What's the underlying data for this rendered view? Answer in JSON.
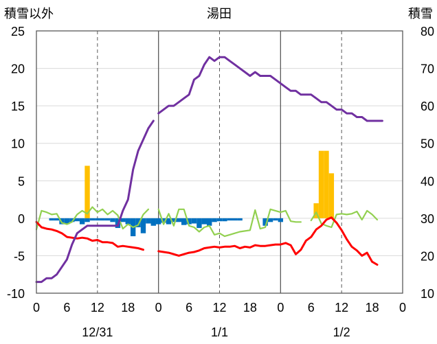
{
  "chart_data": {
    "type": "line",
    "title": "湯田",
    "ylabel_left": "積雪以外",
    "ylabel_right": "積雪",
    "ylim_left": [
      -10,
      25
    ],
    "ylim_right": [
      10,
      80
    ],
    "yticks_left": [
      "-10",
      "-5",
      "0",
      "5",
      "10",
      "15",
      "20",
      "25"
    ],
    "yticks_right": [
      "10",
      "20",
      "30",
      "40",
      "50",
      "60",
      "70",
      "80"
    ],
    "x_hours": [
      0,
      72
    ],
    "xticks": [
      "0",
      "6",
      "12",
      "18",
      "0",
      "6",
      "12",
      "18",
      "0",
      "6",
      "12",
      "18",
      "0"
    ],
    "date_labels": [
      {
        "text": "12/31",
        "hour": 12
      },
      {
        "text": "1/1",
        "hour": 36
      },
      {
        "text": "1/2",
        "hour": 60
      }
    ],
    "colors": {
      "snow_depth": "#7030a0",
      "temperature": "#ff0000",
      "sunshine": "#92d050",
      "precipitation": "#ffc000",
      "snow_change": "#0070c0"
    },
    "series": [
      {
        "key": "snow_depth",
        "axis": "right",
        "kind": "line",
        "segments": [
          [
            [
              0,
              13
            ],
            [
              1,
              13
            ],
            [
              2,
              14
            ],
            [
              3,
              14
            ],
            [
              4,
              15
            ],
            [
              5,
              17
            ],
            [
              6,
              19
            ],
            [
              7,
              23
            ],
            [
              8,
              26
            ],
            [
              9,
              27
            ],
            [
              10,
              28
            ],
            [
              11,
              28
            ],
            [
              12,
              28
            ],
            [
              13,
              28
            ],
            [
              14,
              28
            ],
            [
              15,
              28
            ],
            [
              16,
              28
            ],
            [
              17,
              32
            ],
            [
              18,
              35
            ],
            [
              19,
              43
            ],
            [
              20,
              48
            ],
            [
              21,
              51
            ],
            [
              22,
              54
            ],
            [
              23,
              56
            ]
          ],
          [
            [
              24,
              58
            ],
            [
              25,
              59
            ],
            [
              26,
              60
            ],
            [
              27,
              60
            ],
            [
              28,
              61
            ],
            [
              29,
              62
            ],
            [
              30,
              63
            ],
            [
              31,
              67
            ],
            [
              32,
              68
            ],
            [
              33,
              71
            ],
            [
              34,
              73
            ],
            [
              35,
              72
            ],
            [
              36,
              73
            ],
            [
              37,
              73
            ],
            [
              38,
              72
            ],
            [
              39,
              71
            ],
            [
              40,
              70
            ],
            [
              41,
              69
            ],
            [
              42,
              68
            ],
            [
              43,
              69
            ],
            [
              44,
              68
            ],
            [
              45,
              68
            ],
            [
              46,
              68
            ],
            [
              47,
              67
            ],
            [
              48,
              66
            ],
            [
              49,
              65
            ],
            [
              50,
              64
            ],
            [
              51,
              64
            ],
            [
              52,
              63
            ],
            [
              53,
              63
            ],
            [
              54,
              63
            ],
            [
              55,
              62
            ],
            [
              56,
              61
            ],
            [
              57,
              61
            ],
            [
              58,
              60
            ],
            [
              59,
              59
            ],
            [
              60,
              59
            ],
            [
              61,
              58
            ],
            [
              62,
              58
            ],
            [
              63,
              57
            ],
            [
              64,
              57
            ],
            [
              65,
              56
            ],
            [
              66,
              56
            ],
            [
              67,
              56
            ],
            [
              68,
              56
            ]
          ]
        ]
      },
      {
        "key": "temperature",
        "axis": "left",
        "kind": "line",
        "segments": [
          [
            [
              0,
              -0.5
            ],
            [
              1,
              -1.2
            ],
            [
              2,
              -1.4
            ],
            [
              3,
              -1.5
            ],
            [
              4,
              -1.7
            ],
            [
              5,
              -2.0
            ],
            [
              6,
              -2.5
            ],
            [
              7,
              -2.6
            ],
            [
              8,
              -2.7
            ],
            [
              9,
              -2.6
            ],
            [
              10,
              -2.7
            ],
            [
              11,
              -3.0
            ],
            [
              12,
              -2.9
            ],
            [
              13,
              -3.2
            ],
            [
              14,
              -3.2
            ],
            [
              15,
              -3.3
            ],
            [
              16,
              -3.8
            ],
            [
              17,
              -3.7
            ],
            [
              18,
              -3.8
            ],
            [
              19,
              -3.9
            ],
            [
              20,
              -4.0
            ],
            [
              21,
              -4.2
            ]
          ],
          [
            [
              24,
              -4.4
            ],
            [
              25,
              -4.5
            ],
            [
              26,
              -4.6
            ],
            [
              27,
              -4.8
            ],
            [
              28,
              -5.0
            ],
            [
              29,
              -4.8
            ],
            [
              30,
              -4.6
            ],
            [
              31,
              -4.5
            ],
            [
              32,
              -4.3
            ],
            [
              33,
              -4.0
            ],
            [
              34,
              -3.9
            ],
            [
              35,
              -3.8
            ],
            [
              36,
              -3.9
            ],
            [
              37,
              -3.8
            ],
            [
              38,
              -3.8
            ],
            [
              39,
              -3.7
            ],
            [
              40,
              -4.0
            ],
            [
              41,
              -3.8
            ],
            [
              42,
              -3.9
            ],
            [
              43,
              -3.6
            ],
            [
              44,
              -3.7
            ],
            [
              45,
              -3.7
            ],
            [
              46,
              -3.6
            ],
            [
              47,
              -3.5
            ],
            [
              48,
              -3.5
            ],
            [
              49,
              -3.3
            ],
            [
              50,
              -3.6
            ],
            [
              51,
              -4.8
            ],
            [
              52,
              -4.2
            ],
            [
              53,
              -3.0
            ],
            [
              54,
              -2.5
            ],
            [
              55,
              -1.5
            ],
            [
              56,
              -1.0
            ],
            [
              57,
              -0.2
            ],
            [
              58,
              0.1
            ],
            [
              59,
              -0.6
            ],
            [
              60,
              -1.6
            ],
            [
              61,
              -2.8
            ],
            [
              62,
              -3.8
            ],
            [
              63,
              -4.3
            ],
            [
              64,
              -5.0
            ],
            [
              65,
              -4.6
            ],
            [
              66,
              -5.8
            ],
            [
              67,
              -6.2
            ]
          ]
        ]
      },
      {
        "key": "sunshine",
        "axis": "left",
        "kind": "line",
        "segments": [
          [
            [
              0,
              -1.5
            ],
            [
              1,
              1.0
            ],
            [
              2,
              0.8
            ],
            [
              3,
              0.5
            ],
            [
              4,
              0.6
            ],
            [
              5,
              -0.6
            ],
            [
              6,
              -0.8
            ],
            [
              7,
              -0.5
            ],
            [
              8,
              0.5
            ],
            [
              9,
              1.0
            ],
            [
              10,
              0.6
            ],
            [
              11,
              1.5
            ],
            [
              12,
              0.8
            ],
            [
              13,
              1.2
            ],
            [
              14,
              0.5
            ],
            [
              15,
              1.0
            ],
            [
              16,
              0.4
            ],
            [
              17,
              -1.4
            ],
            [
              18,
              -0.8
            ],
            [
              19,
              -1.2
            ],
            [
              20,
              -0.9
            ],
            [
              21,
              0.5
            ],
            [
              22,
              1.2
            ]
          ],
          [
            [
              24,
              1.2
            ],
            [
              25,
              -0.8
            ],
            [
              26,
              0.6
            ],
            [
              27,
              -1.0
            ],
            [
              28,
              1.2
            ],
            [
              29,
              1.2
            ],
            [
              30,
              -1.0
            ],
            [
              31,
              -1.2
            ],
            [
              32,
              -1.8
            ],
            [
              33,
              -1.2
            ],
            [
              34,
              -1.0
            ],
            [
              35,
              -2.2
            ],
            [
              36,
              -2.0
            ],
            [
              37,
              -2.4
            ],
            [
              38,
              -2.2
            ],
            [
              39,
              -2.0
            ],
            [
              40,
              -1.8
            ],
            [
              41,
              -1.7
            ],
            [
              42,
              -1.6
            ],
            [
              43,
              1.1
            ],
            [
              44,
              -1.4
            ],
            [
              45,
              -1.2
            ],
            [
              46,
              1.2
            ],
            [
              47,
              1.0
            ],
            [
              48,
              0.8
            ],
            [
              49,
              1.0
            ],
            [
              50,
              -0.4
            ],
            [
              51,
              -0.5
            ],
            [
              52,
              -0.5
            ]
          ],
          [
            [
              54,
              -0.3
            ],
            [
              55,
              0.8
            ],
            [
              56,
              -0.7
            ],
            [
              57,
              -1.0
            ],
            [
              58,
              -1.2
            ],
            [
              59,
              0.5
            ],
            [
              60,
              0.6
            ],
            [
              61,
              0.5
            ],
            [
              62,
              0.6
            ],
            [
              63,
              0.9
            ],
            [
              64,
              -0.2
            ],
            [
              65,
              1.0
            ],
            [
              66,
              0.5
            ],
            [
              67,
              -0.2
            ]
          ]
        ]
      },
      {
        "key": "precipitation",
        "axis": "left",
        "kind": "bar",
        "points": [
          [
            10,
            7.0
          ],
          [
            55,
            2.0
          ],
          [
            56,
            9.0
          ],
          [
            57,
            9.0
          ],
          [
            58,
            6.0
          ]
        ]
      },
      {
        "key": "snow_change",
        "axis": "left",
        "kind": "bar",
        "points": [
          [
            3,
            -0.3
          ],
          [
            4,
            -0.3
          ],
          [
            5,
            -0.8
          ],
          [
            6,
            -0.8
          ],
          [
            7,
            -0.5
          ],
          [
            8,
            -0.4
          ],
          [
            9,
            -0.8
          ],
          [
            10,
            -0.5
          ],
          [
            11,
            -0.3
          ],
          [
            12,
            -0.3
          ],
          [
            13,
            -0.3
          ],
          [
            14,
            -0.3
          ],
          [
            15,
            -0.5
          ],
          [
            16,
            -1.3
          ],
          [
            17,
            -0.5
          ],
          [
            18,
            -0.8
          ],
          [
            19,
            -2.4
          ],
          [
            20,
            -1.2
          ],
          [
            21,
            -2.0
          ],
          [
            22,
            -0.7
          ],
          [
            23,
            -1.0
          ],
          [
            24,
            -0.8
          ],
          [
            25,
            -0.6
          ],
          [
            26,
            -0.8
          ],
          [
            27,
            -0.5
          ],
          [
            28,
            -0.5
          ],
          [
            29,
            -0.9
          ],
          [
            30,
            -0.8
          ],
          [
            31,
            -0.7
          ],
          [
            32,
            -1.3
          ],
          [
            33,
            -0.8
          ],
          [
            34,
            -1.0
          ],
          [
            35,
            -0.5
          ],
          [
            36,
            -0.4
          ],
          [
            37,
            -0.4
          ],
          [
            38,
            -0.3
          ],
          [
            39,
            -0.3
          ],
          [
            40,
            -0.3
          ],
          [
            45,
            -1.0
          ],
          [
            46,
            -0.5
          ],
          [
            47,
            -0.3
          ],
          [
            48,
            -0.5
          ]
        ]
      }
    ]
  }
}
